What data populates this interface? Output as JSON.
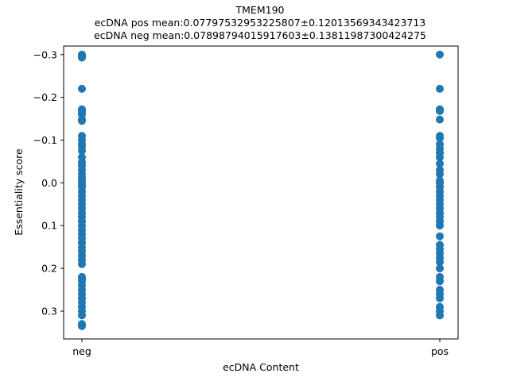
{
  "chart_data": {
    "type": "scatter",
    "title": "TMEM190",
    "subtitle_lines": [
      "ecDNA pos mean:0.07797532953225807±0.12013569343423713",
      "ecDNA neg mean:0.07898794015917603±0.13811987300424275"
    ],
    "xlabel": "ecDNA Content",
    "ylabel": "Essentiality score",
    "categories": [
      "neg",
      "pos"
    ],
    "y_ticks": [
      -0.3,
      -0.2,
      -0.1,
      0.0,
      0.1,
      0.2,
      0.3
    ],
    "y_tick_labels": [
      "−0.3",
      "−0.2",
      "−0.1",
      "0.0",
      "0.1",
      "0.2",
      "0.3"
    ],
    "ylim": [
      -0.32,
      0.365
    ],
    "y_inverted": true,
    "grid": false,
    "point_color": "#1f77b4",
    "series": [
      {
        "category": "neg",
        "values": [
          -0.3,
          -0.297,
          -0.295,
          -0.293,
          -0.22,
          -0.172,
          -0.168,
          -0.165,
          -0.16,
          -0.148,
          -0.145,
          -0.11,
          -0.1,
          -0.09,
          -0.085,
          -0.075,
          -0.06,
          -0.048,
          -0.04,
          -0.03,
          -0.02,
          -0.012,
          -0.005,
          0.0,
          0.005,
          0.01,
          0.02,
          0.03,
          0.04,
          0.05,
          0.06,
          0.07,
          0.08,
          0.09,
          0.1,
          0.11,
          0.12,
          0.13,
          0.14,
          0.15,
          0.16,
          0.17,
          0.18,
          0.19,
          0.22,
          0.225,
          0.23,
          0.24,
          0.25,
          0.26,
          0.27,
          0.28,
          0.29,
          0.3,
          0.31,
          0.33,
          0.335
        ]
      },
      {
        "category": "pos",
        "values": [
          -0.3,
          -0.22,
          -0.172,
          -0.168,
          -0.148,
          -0.11,
          -0.105,
          -0.09,
          -0.08,
          -0.07,
          -0.06,
          -0.045,
          -0.03,
          -0.02,
          -0.005,
          0.0,
          0.01,
          0.02,
          0.03,
          0.04,
          0.05,
          0.06,
          0.07,
          0.08,
          0.09,
          0.1,
          0.125,
          0.145,
          0.155,
          0.165,
          0.175,
          0.185,
          0.2,
          0.22,
          0.23,
          0.25,
          0.26,
          0.27,
          0.29,
          0.3,
          0.31
        ]
      }
    ]
  }
}
